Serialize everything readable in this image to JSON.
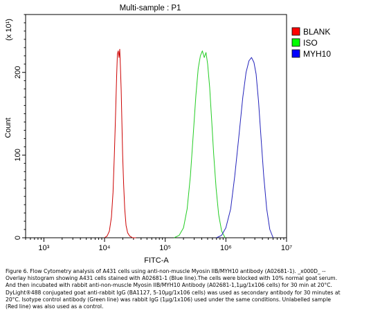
{
  "chart_data": {
    "type": "line",
    "title": "Multi-sample : P1",
    "xlabel": "FITC-A",
    "ylabel": "Count",
    "y_multiplier_label": "(x 10¹)",
    "x_scale": "log",
    "xlim": [
      500,
      10000000
    ],
    "ylim": [
      0,
      270
    ],
    "x_ticks": [
      {
        "value": 1000,
        "label": "10³"
      },
      {
        "value": 10000,
        "label": "10⁴"
      },
      {
        "value": 100000,
        "label": "10⁵"
      },
      {
        "value": 1000000,
        "label": "10⁶"
      },
      {
        "value": 10000000,
        "label": "10⁷"
      }
    ],
    "y_ticks": [
      {
        "value": 0,
        "label": "0"
      },
      {
        "value": 100,
        "label": "100"
      },
      {
        "value": 200,
        "label": "200"
      }
    ],
    "grid": false,
    "legend_position": "top-right",
    "series": [
      {
        "name": "BLANK",
        "color": "#cc0000",
        "legend_color": "#ff0000",
        "x": [
          10000,
          11000,
          12000,
          13000,
          13800,
          14500,
          15200,
          15800,
          16300,
          16800,
          17300,
          17800,
          18300,
          18800,
          19300,
          19900,
          20600,
          21500,
          22600,
          24000,
          26000,
          29000,
          33000
        ],
        "y": [
          0,
          2,
          8,
          25,
          55,
          100,
          150,
          195,
          222,
          226,
          218,
          228,
          206,
          178,
          140,
          100,
          65,
          35,
          15,
          6,
          2,
          0,
          0
        ]
      },
      {
        "name": "ISO",
        "color": "#22cc22",
        "legend_color": "#00ff00",
        "x": [
          140000,
          170000,
          200000,
          230000,
          260000,
          290000,
          320000,
          350000,
          380000,
          410000,
          440000,
          470000,
          500000,
          540000,
          580000,
          630000,
          690000,
          760000,
          850000,
          970000
        ],
        "y": [
          0,
          3,
          12,
          35,
          75,
          125,
          172,
          205,
          220,
          226,
          218,
          224,
          210,
          182,
          145,
          100,
          60,
          28,
          8,
          0
        ]
      },
      {
        "name": "MYH10",
        "color": "#2222bb",
        "legend_color": "#0000ff",
        "x": [
          700000,
          850000,
          1000000,
          1200000,
          1400000,
          1650000,
          1900000,
          2150000,
          2400000,
          2650000,
          2900000,
          3150000,
          3450000,
          3800000,
          4200000,
          4700000,
          5300000,
          6000000
        ],
        "y": [
          0,
          3,
          12,
          35,
          75,
          125,
          170,
          200,
          214,
          218,
          212,
          198,
          165,
          120,
          75,
          35,
          10,
          0
        ]
      }
    ]
  },
  "caption": {
    "lines": [
      "Figure 6. Flow Cytometry analysis of A431 cells using anti-non-muscle Myosin IIB/MYH10 antibody (A02681-1). _x000D_ --",
      "Overlay histogram showing A431 cells stained with A02681-1 (Blue line).The cells were blocked with 10% normal goat serum.",
      "And then incubated with rabbit anti-non-muscle Myosin IIB/MYH10 Antibody (A02681-1,1μg/1x106 cells) for 30 min at 20°C.",
      "DyLight®488 conjugated goat anti-rabbit IgG (BA1127, 5-10μg/1x106 cells) was used as secondary antibody for 30 minutes at",
      "20°C. Isotype control antibody (Green line) was rabbit IgG (1μg/1x106) used under the same conditions. Unlabelled sample",
      "(Red line) was also used as a control."
    ]
  }
}
